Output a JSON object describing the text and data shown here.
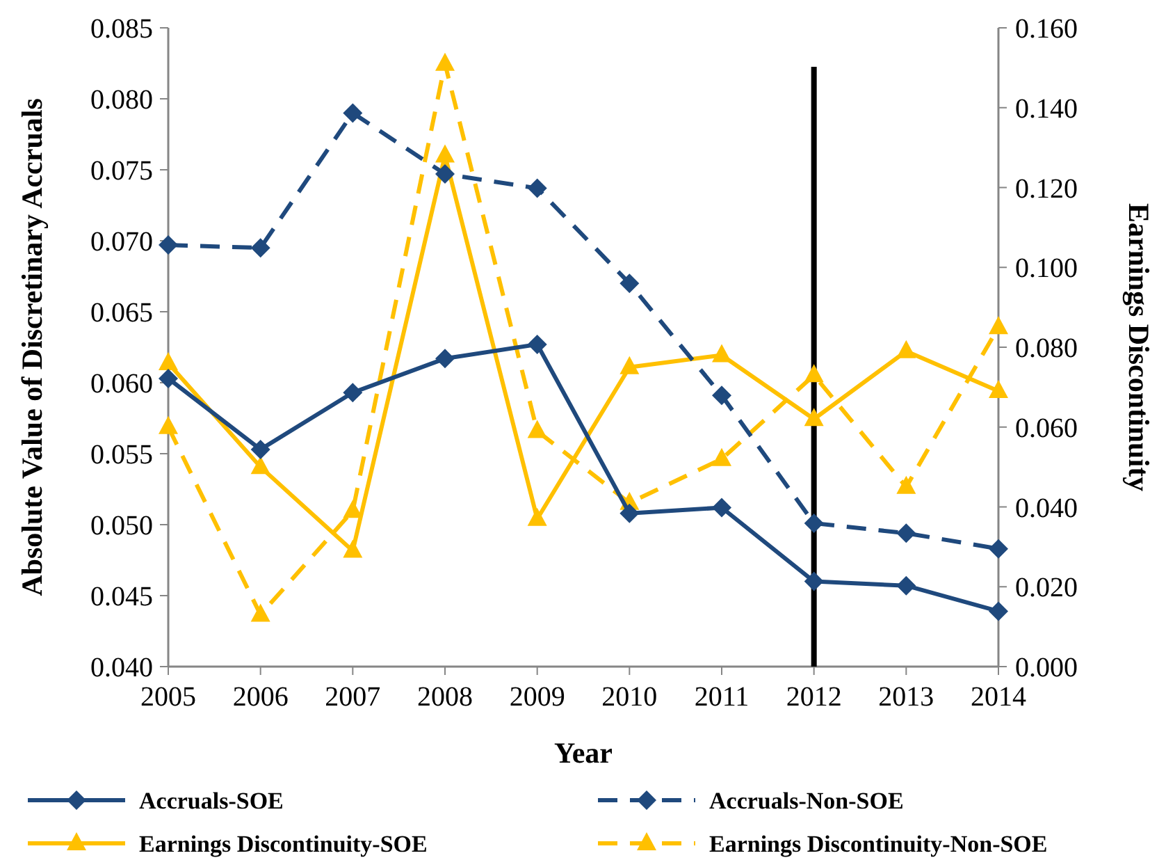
{
  "chart_data": {
    "type": "line",
    "xlabel": "Year",
    "ylabel": "Absolute Value of Discretinary Accruals",
    "y2label": "Earnings Discontinuity",
    "x": [
      2005,
      2006,
      2007,
      2008,
      2009,
      2010,
      2011,
      2012,
      2013,
      2014
    ],
    "xlim": [
      2005,
      2014
    ],
    "xticks": [
      2005,
      2006,
      2007,
      2008,
      2009,
      2010,
      2011,
      2012,
      2013,
      2014
    ],
    "ylim": [
      0.04,
      0.085
    ],
    "yticks": [
      {
        "value": 0.04,
        "label": "0.040"
      },
      {
        "value": 0.045,
        "label": "0.045"
      },
      {
        "value": 0.05,
        "label": "0.050"
      },
      {
        "value": 0.055,
        "label": "0.055"
      },
      {
        "value": 0.06,
        "label": "0.060"
      },
      {
        "value": 0.065,
        "label": "0.065"
      },
      {
        "value": 0.07,
        "label": "0.070"
      },
      {
        "value": 0.075,
        "label": "0.075"
      },
      {
        "value": 0.08,
        "label": "0.080"
      },
      {
        "value": 0.085,
        "label": "0.085"
      }
    ],
    "y2lim": [
      0,
      0.16
    ],
    "y2ticks": [
      {
        "value": 0,
        "label": "0.000"
      },
      {
        "value": 0.02,
        "label": "0.020"
      },
      {
        "value": 0.04,
        "label": "0.040"
      },
      {
        "value": 0.06,
        "label": "0.060"
      },
      {
        "value": 0.08,
        "label": "0.080"
      },
      {
        "value": 0.1,
        "label": "0.100"
      },
      {
        "value": 0.12,
        "label": "0.120"
      },
      {
        "value": 0.14,
        "label": "0.140"
      },
      {
        "value": 0.16,
        "label": "0.160"
      }
    ],
    "grid": false,
    "legend": "bottom",
    "ref_lines": [
      {
        "axis": "x",
        "value": 2012,
        "color": "#000000"
      }
    ],
    "series": [
      {
        "name": "Accruals-SOE",
        "color": "#1f497d",
        "marker": "diamond",
        "line_style": "solid",
        "values": [
          0.0603,
          0.0553,
          0.0593,
          0.0617,
          0.0627,
          0.0508,
          0.0512,
          0.046,
          0.0457,
          0.0439
        ]
      },
      {
        "name": "Accruals-Non-SOE",
        "color": "#1f497d",
        "marker": "diamond",
        "line_style": "dashed",
        "values": [
          0.0697,
          0.0695,
          0.079,
          0.0747,
          0.0737,
          0.067,
          0.0591,
          0.0501,
          0.0494,
          0.0483
        ]
      },
      {
        "name": "Earnings Discontinuity-SOE",
        "color": "#ffc000",
        "marker": "triangle",
        "line_style": "solid",
        "axis": "y2",
        "values": [
          0.076,
          0.05,
          0.029,
          0.128,
          0.037,
          0.075,
          0.078,
          0.062,
          0.079,
          0.069
        ]
      },
      {
        "name": "Earnings Discontinuity-Non-SOE",
        "color": "#ffc000",
        "marker": "triangle",
        "line_style": "dashed",
        "axis": "y2",
        "values": [
          0.06,
          0.013,
          0.039,
          0.151,
          0.059,
          0.041,
          0.052,
          0.073,
          0.045,
          0.085
        ]
      }
    ]
  }
}
